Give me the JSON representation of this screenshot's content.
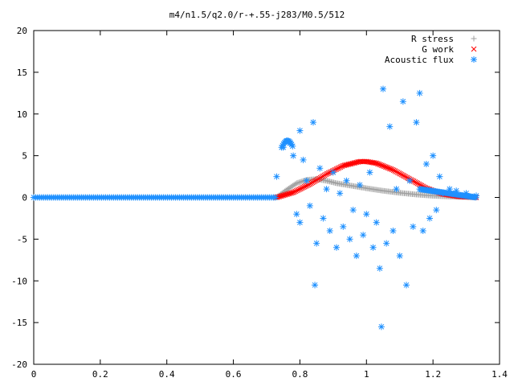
{
  "chart_data": {
    "type": "scatter",
    "title": "m4/n1.5/q2.0/r-+.55-j283/M0.5/512",
    "xlabel": "",
    "ylabel": "",
    "xlim": [
      0,
      1.4
    ],
    "ylim": [
      -20,
      20
    ],
    "x_ticks": [
      "0",
      "0.2",
      "0.4",
      "0.6",
      "0.8",
      "1",
      "1.2",
      "1.4"
    ],
    "y_ticks": [
      "20",
      "15",
      "10",
      "5",
      "0",
      "-5",
      "-10",
      "-15",
      "-20"
    ],
    "grid": false,
    "legend_position": "top-right",
    "series": [
      {
        "name": "R stress",
        "marker": "plus",
        "color": "#a0a0a0",
        "model": "rise from 0 at x=0.73 to peak ~2.2 at x~0.83, decay to ~0 at x=1.33",
        "x": [
          0.73,
          0.76,
          0.79,
          0.82,
          0.85,
          0.88,
          0.91,
          0.94,
          0.97,
          1.0,
          1.05,
          1.1,
          1.15,
          1.2,
          1.25,
          1.3,
          1.33
        ],
        "y": [
          0.0,
          0.9,
          1.7,
          2.1,
          2.2,
          2.0,
          1.7,
          1.5,
          1.3,
          1.1,
          0.8,
          0.55,
          0.35,
          0.2,
          0.1,
          0.05,
          0.0
        ]
      },
      {
        "name": "G work",
        "marker": "cross",
        "color": "#ff0000",
        "x": [
          0.73,
          0.78,
          0.83,
          0.88,
          0.93,
          0.98,
          1.0,
          1.03,
          1.08,
          1.13,
          1.18,
          1.23,
          1.28,
          1.33
        ],
        "y": [
          0.0,
          0.6,
          1.6,
          2.8,
          3.8,
          4.3,
          4.3,
          4.1,
          3.3,
          2.2,
          1.1,
          0.4,
          0.1,
          0.0
        ]
      },
      {
        "name": "Acoustic flux",
        "marker": "star",
        "color": "#1e90ff",
        "line_x_range": [
          0.0,
          0.73
        ],
        "line_y": 0,
        "x": [
          0.73,
          0.75,
          0.76,
          0.77,
          0.78,
          0.79,
          0.8,
          0.8,
          0.81,
          0.82,
          0.83,
          0.84,
          0.845,
          0.85,
          0.86,
          0.87,
          0.88,
          0.89,
          0.9,
          0.91,
          0.92,
          0.93,
          0.94,
          0.95,
          0.96,
          0.97,
          0.98,
          0.99,
          1.0,
          1.01,
          1.02,
          1.03,
          1.04,
          1.045,
          1.05,
          1.06,
          1.07,
          1.08,
          1.09,
          1.1,
          1.11,
          1.12,
          1.13,
          1.14,
          1.15,
          1.16,
          1.17,
          1.18,
          1.19,
          1.2,
          1.21,
          1.22,
          1.23,
          1.25,
          1.27,
          1.3,
          1.33
        ],
        "y": [
          2.5,
          6.0,
          6.8,
          6.5,
          5.0,
          -2.0,
          8.0,
          -3.0,
          4.5,
          2.0,
          -1.0,
          9.0,
          -10.5,
          -5.5,
          3.5,
          -2.5,
          1.0,
          -4.0,
          3.0,
          -6.0,
          0.5,
          -3.5,
          2.0,
          -5.0,
          -1.5,
          -7.0,
          1.5,
          -4.5,
          -2.0,
          3.0,
          -6.0,
          -3.0,
          -8.5,
          -15.5,
          13.0,
          -5.5,
          8.5,
          -4.0,
          1.0,
          -7.0,
          11.5,
          -10.5,
          2.0,
          -3.5,
          9.0,
          12.5,
          -4.0,
          4.0,
          -2.5,
          5.0,
          -1.5,
          2.5,
          0.5,
          1.0,
          0.8,
          0.5,
          0.2
        ]
      }
    ]
  }
}
